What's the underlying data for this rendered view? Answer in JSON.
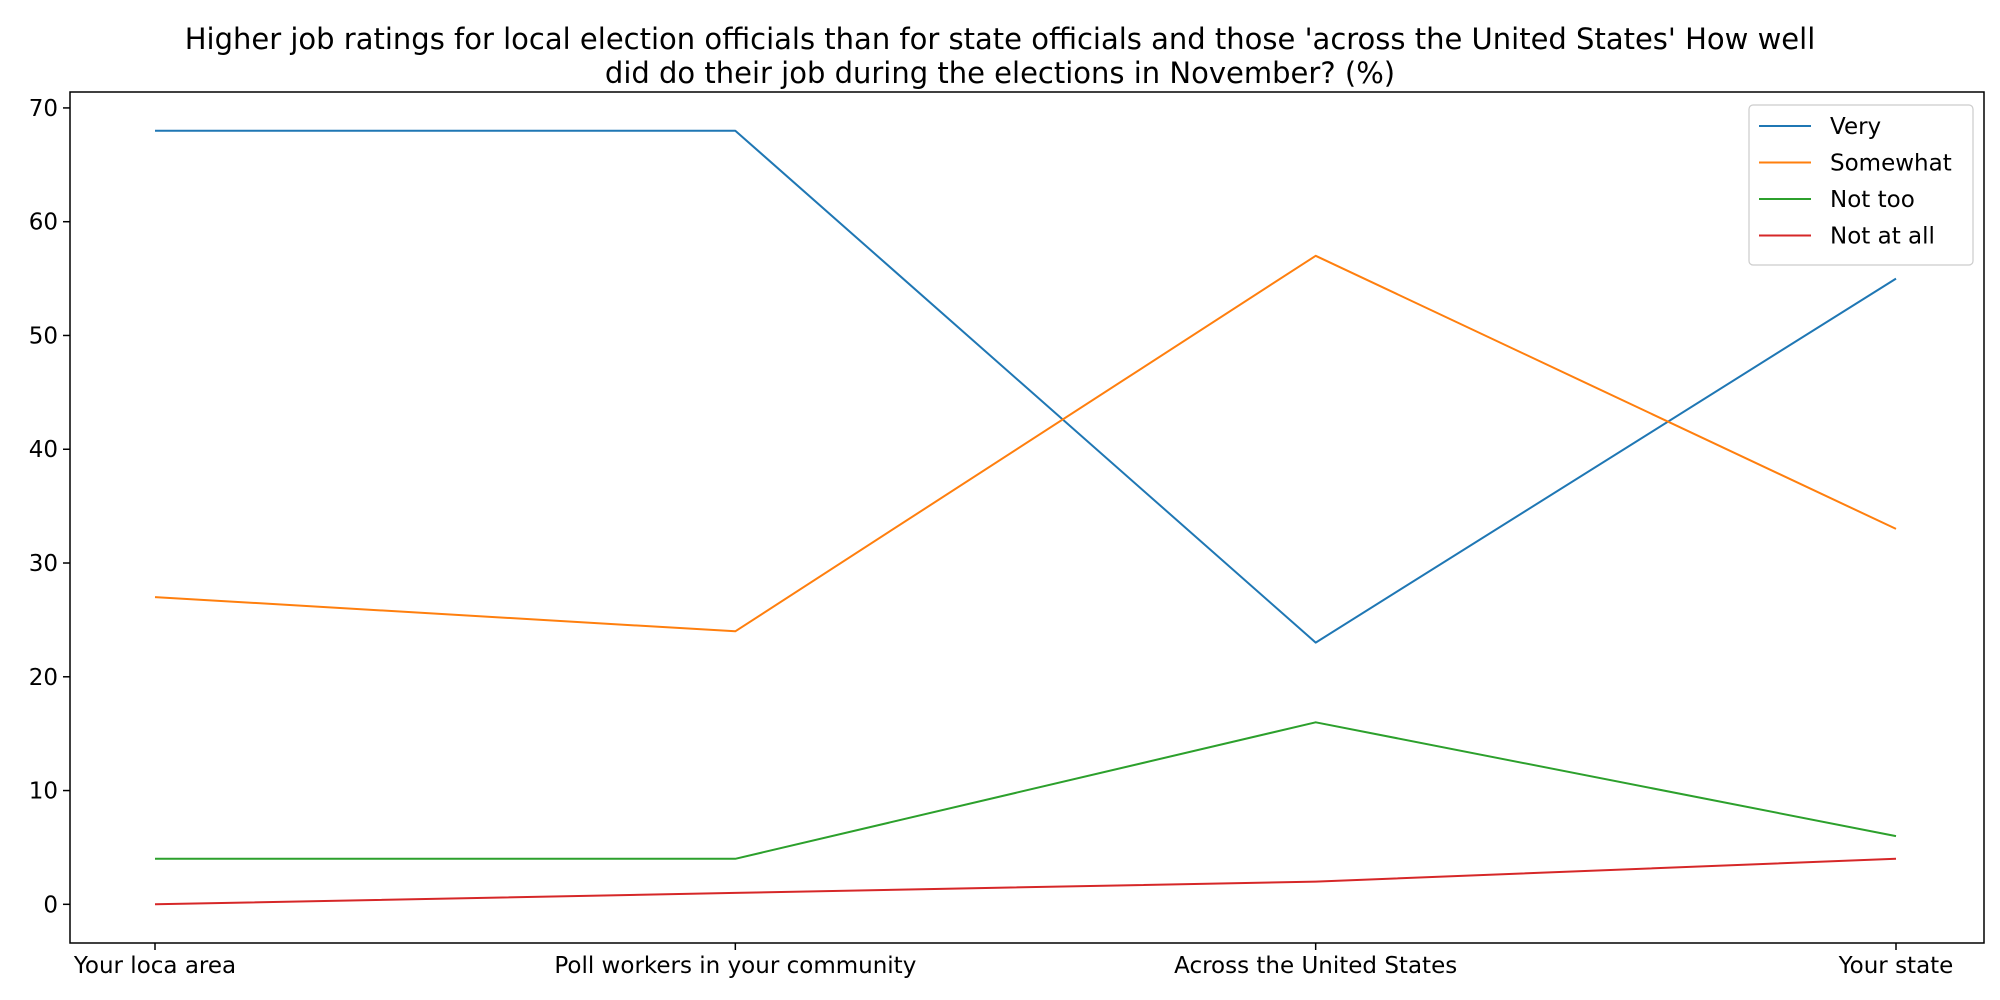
{
  "chart_data": {
    "type": "line",
    "title_lines": [
      "Higher job ratings for local election officials than for state officials and those 'across the United States' How well",
      "did do their job during the elections in November? (%)"
    ],
    "categories": [
      "Your loca area",
      "Poll workers in your community",
      "Across the United States",
      "Your state"
    ],
    "series": [
      {
        "name": "Very",
        "values": [
          68,
          68,
          23,
          55
        ],
        "color": "#1f77b4"
      },
      {
        "name": "Somewhat",
        "values": [
          27,
          24,
          57,
          33
        ],
        "color": "#ff7f0e"
      },
      {
        "name": "Not too",
        "values": [
          4,
          4,
          16,
          6
        ],
        "color": "#2ca02c"
      },
      {
        "name": "Not at all",
        "values": [
          0,
          1,
          2,
          4
        ],
        "color": "#d62728"
      }
    ],
    "yticks": [
      0,
      10,
      20,
      30,
      40,
      50,
      60,
      70
    ],
    "ylim": [
      -3.4,
      71.4
    ],
    "grid": false,
    "legend_position": "top-right"
  }
}
